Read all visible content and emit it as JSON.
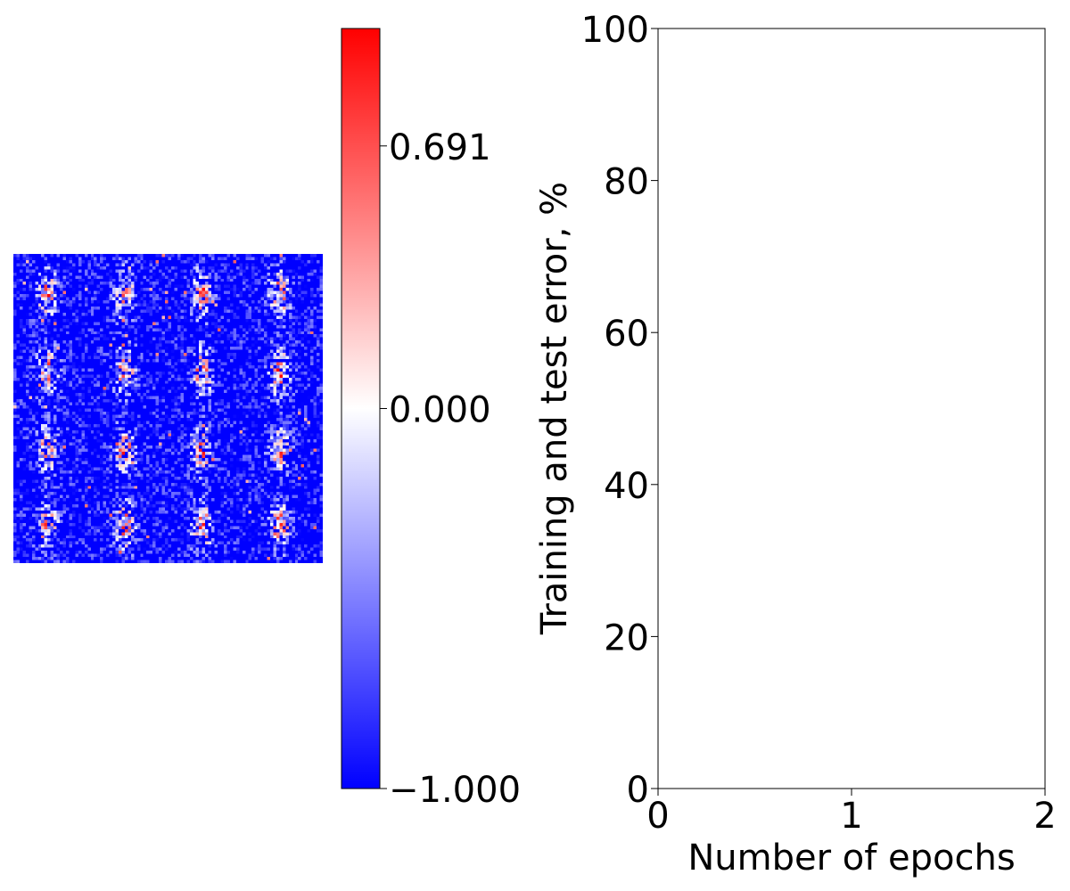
{
  "chart_data": [
    {
      "type": "heatmap",
      "grid_size": [
        100,
        100
      ],
      "value_range": [
        -1.0,
        1.0
      ],
      "colormap": {
        "name": "bwr",
        "low_color": "#0000ff",
        "mid_color": "#ffffff",
        "high_color": "#ff0000"
      },
      "pattern": {
        "blob_rows": 4,
        "blob_cols": 4,
        "background_value": -1.0
      },
      "colorbar": {
        "ticks": [
          {
            "value": 0.691,
            "label": "0.691"
          },
          {
            "value": 0.0,
            "label": "0.000"
          },
          {
            "value": -1.0,
            "label": "−1.000"
          }
        ]
      }
    },
    {
      "type": "line",
      "title": "",
      "xlabel": "Number of epochs",
      "ylabel": "Training and test error, %",
      "xlim": [
        0,
        2
      ],
      "ylim": [
        0,
        100
      ],
      "xticks": [
        {
          "value": 0,
          "label": "0"
        },
        {
          "value": 1,
          "label": "1"
        },
        {
          "value": 2,
          "label": "2"
        }
      ],
      "yticks": [
        {
          "value": 0,
          "label": "0"
        },
        {
          "value": 20,
          "label": "20"
        },
        {
          "value": 40,
          "label": "40"
        },
        {
          "value": 60,
          "label": "60"
        },
        {
          "value": 80,
          "label": "80"
        },
        {
          "value": 100,
          "label": "100"
        }
      ],
      "grid": false,
      "series": []
    }
  ]
}
